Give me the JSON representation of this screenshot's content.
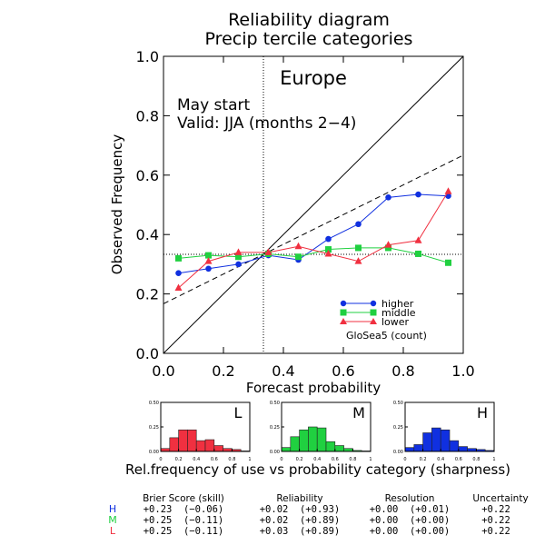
{
  "chart_data": {
    "type": "line",
    "title": [
      "Reliability diagram",
      "Precip tercile categories"
    ],
    "xlabel": "Forecast probability",
    "ylabel": "Observed Frequency",
    "xlim": [
      0,
      1
    ],
    "ylim": [
      0,
      1
    ],
    "x_ticks": [
      "0.0",
      "0.2",
      "0.4",
      "0.6",
      "0.8",
      "1.0"
    ],
    "y_ticks": [
      "0.0",
      "0.2",
      "0.4",
      "0.6",
      "0.8",
      "1.0"
    ],
    "region": "Europe",
    "annotation": [
      "May start",
      "Valid: JJA (months 2−4)"
    ],
    "climatology": 0.333,
    "no_skill_line": [
      [
        0,
        0.167
      ],
      [
        1,
        0.667
      ]
    ],
    "x": [
      0.05,
      0.15,
      0.25,
      0.35,
      0.45,
      0.55,
      0.65,
      0.75,
      0.85,
      0.95
    ],
    "series": [
      {
        "name": "higher",
        "color": "#1030e0",
        "marker": "circle",
        "values": [
          0.27,
          0.285,
          0.3,
          0.33,
          0.315,
          0.385,
          0.435,
          0.525,
          0.535,
          0.53
        ]
      },
      {
        "name": "middle",
        "color": "#20d040",
        "marker": "square",
        "values": [
          0.32,
          0.33,
          0.325,
          0.335,
          0.325,
          0.35,
          0.355,
          0.355,
          0.335,
          0.305
        ]
      },
      {
        "name": "lower",
        "color": "#f03040",
        "marker": "triangle",
        "values": [
          0.22,
          0.31,
          0.34,
          0.34,
          0.36,
          0.335,
          0.31,
          0.365,
          0.38,
          0.545
        ]
      }
    ],
    "legend_footer": "GloSea5 (count)",
    "sharpness": {
      "caption": "Rel.frequency of use vs probability category (sharpness)",
      "y_ticks": [
        "0.00",
        "0.25",
        "0.50"
      ],
      "x_ticks": [
        "0",
        "0.2",
        "0.4",
        "0.6",
        "0.8",
        "1"
      ],
      "ylim": [
        0,
        0.5
      ],
      "panels": [
        {
          "label": "L",
          "color": "#f03040",
          "values": [
            0.03,
            0.14,
            0.22,
            0.22,
            0.11,
            0.12,
            0.06,
            0.03,
            0.02,
            0.005
          ]
        },
        {
          "label": "M",
          "color": "#20d040",
          "values": [
            0.04,
            0.15,
            0.22,
            0.25,
            0.24,
            0.1,
            0.06,
            0.03,
            0.01,
            0.005
          ]
        },
        {
          "label": "H",
          "color": "#1030e0",
          "values": [
            0.04,
            0.07,
            0.19,
            0.24,
            0.22,
            0.11,
            0.05,
            0.03,
            0.02,
            0.01
          ]
        }
      ]
    },
    "scores": {
      "headers": [
        "Brier Score (skill)",
        "Reliability",
        "Resolution",
        "Uncertainty"
      ],
      "rows": [
        {
          "label": "H",
          "color": "#1030e0",
          "cells": [
            "+0.23  (−0.06)",
            "+0.02  (+0.93)",
            "+0.00  (+0.01)",
            "+0.22"
          ]
        },
        {
          "label": "M",
          "color": "#20d040",
          "cells": [
            "+0.25  (−0.11)",
            "+0.02  (+0.89)",
            "+0.00  (+0.00)",
            "+0.22"
          ]
        },
        {
          "label": "L",
          "color": "#f03040",
          "cells": [
            "+0.25  (−0.11)",
            "+0.03  (+0.89)",
            "+0.00  (+0.00)",
            "+0.22"
          ]
        }
      ]
    }
  }
}
